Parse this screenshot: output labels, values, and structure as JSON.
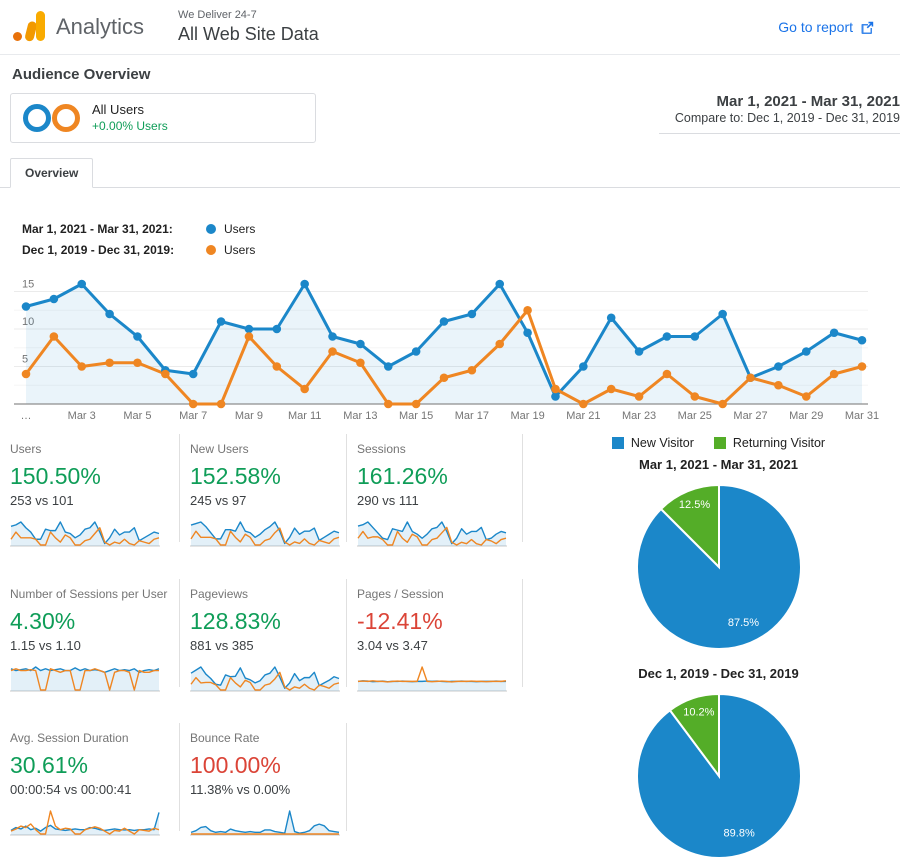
{
  "header": {
    "brand": "Analytics",
    "account_line": "We Deliver 24-7",
    "property_line": "All Web Site Data",
    "go_to_report": "Go to report"
  },
  "page_title": "Audience Overview",
  "segment": {
    "name": "All Users",
    "delta": "+0.00% Users"
  },
  "date_range": {
    "primary": "Mar 1, 2021 - Mar 31, 2021",
    "compare": "Compare to: Dec 1, 2019 - Dec 31, 2019"
  },
  "tabs": [
    {
      "label": "Overview"
    }
  ],
  "colors": {
    "blue": "#1b87c9",
    "orange": "#ef8622",
    "green": "#54ad28",
    "metric_up": "#0f9d58",
    "metric_down": "#db4437",
    "link": "#1a73e8",
    "logo_dot": "#e8710a",
    "logo_mid_bar": "#f29900",
    "logo_tall_bar": "#f9ab00"
  },
  "chart_data": [
    {
      "id": "users-over-time",
      "type": "line",
      "ylim": [
        0,
        17.5
      ],
      "yticks": [
        5,
        10,
        15
      ],
      "grid": true,
      "x_axis_labels": [
        "…",
        "Mar 3",
        "Mar 5",
        "Mar 7",
        "Mar 9",
        "Mar 11",
        "Mar 13",
        "Mar 15",
        "Mar 17",
        "Mar 19",
        "Mar 21",
        "Mar 23",
        "Mar 25",
        "Mar 27",
        "Mar 29",
        "Mar 31"
      ],
      "x_axis_label_days": [
        1,
        3,
        5,
        7,
        9,
        11,
        13,
        15,
        17,
        19,
        21,
        23,
        25,
        27,
        29,
        31
      ],
      "series": [
        {
          "name": "Users",
          "period_label": "Mar 1, 2021 - Mar 31, 2021:",
          "color": "blue",
          "area": true,
          "values": [
            13,
            14,
            16,
            12,
            9,
            4.5,
            4,
            11,
            10,
            10,
            16,
            9,
            8,
            5,
            7,
            11,
            12,
            16,
            9.5,
            1,
            5,
            11.5,
            7,
            9,
            9,
            12,
            3.5,
            5,
            7,
            9.5,
            8.5
          ]
        },
        {
          "name": "Users",
          "period_label": "Dec 1, 2019 - Dec 31, 2019:",
          "color": "orange",
          "area": false,
          "values": [
            4,
            9,
            5,
            5.5,
            5.5,
            4,
            0,
            0,
            9,
            5,
            2,
            7,
            5.5,
            0,
            0,
            3.5,
            4.5,
            8,
            12.5,
            2,
            0,
            2,
            1,
            4,
            1,
            0,
            3.5,
            2.5,
            1,
            4,
            5
          ]
        }
      ]
    },
    {
      "id": "visitors-pie-current",
      "type": "pie",
      "title": "Mar 1, 2021 - Mar 31, 2021",
      "legend_position": "top",
      "slices": [
        {
          "label": "New Visitor",
          "color": "blue",
          "value": 87.5,
          "display": "87.5%"
        },
        {
          "label": "Returning Visitor",
          "color": "green",
          "value": 12.5,
          "display": "12.5%"
        }
      ]
    },
    {
      "id": "visitors-pie-previous",
      "type": "pie",
      "title": "Dec 1, 2019 - Dec 31, 2019",
      "slices": [
        {
          "label": "New Visitor",
          "color": "blue",
          "value": 89.8,
          "display": "89.8%"
        },
        {
          "label": "Returning Visitor",
          "color": "green",
          "value": 10.2,
          "display": "10.2%"
        }
      ]
    }
  ],
  "visitor_legend": [
    {
      "label": "New Visitor",
      "color": "blue"
    },
    {
      "label": "Returning Visitor",
      "color": "green"
    }
  ],
  "scorecards": [
    {
      "label": "Users",
      "pct": "150.50%",
      "direction": "up",
      "values": "253 vs 101",
      "spark": {
        "type": "line",
        "blue": [
          13,
          14,
          16,
          12,
          9,
          4,
          4,
          11,
          10,
          10,
          16,
          9,
          8,
          5,
          7,
          11,
          12,
          16,
          9,
          1,
          5,
          11,
          7,
          9,
          9,
          12,
          3,
          5,
          7,
          9,
          8
        ],
        "orange": [
          4,
          9,
          5,
          5,
          5,
          4,
          0,
          0,
          9,
          5,
          2,
          7,
          5,
          0,
          0,
          3,
          4,
          8,
          12,
          2,
          0,
          2,
          1,
          4,
          1,
          0,
          3,
          2,
          1,
          4,
          5
        ]
      }
    },
    {
      "label": "New Users",
      "pct": "152.58%",
      "direction": "up",
      "values": "245 vs 97",
      "spark": {
        "type": "line",
        "blue": [
          13,
          14,
          15,
          12,
          8,
          4,
          4,
          10,
          10,
          9,
          15,
          9,
          8,
          5,
          7,
          10,
          12,
          15,
          9,
          1,
          5,
          11,
          7,
          9,
          9,
          11,
          3,
          5,
          7,
          9,
          8
        ],
        "orange": [
          4,
          9,
          5,
          5,
          5,
          4,
          0,
          0,
          9,
          5,
          2,
          7,
          5,
          0,
          0,
          3,
          4,
          8,
          11,
          2,
          0,
          2,
          1,
          4,
          1,
          0,
          3,
          2,
          1,
          4,
          5
        ]
      }
    },
    {
      "label": "Sessions",
      "pct": "161.26%",
      "direction": "up",
      "values": "290 vs 111",
      "spark": {
        "type": "line",
        "blue": [
          14,
          15,
          17,
          13,
          9,
          5,
          4,
          12,
          11,
          10,
          17,
          10,
          8,
          5,
          8,
          12,
          13,
          17,
          10,
          1,
          5,
          12,
          8,
          10,
          10,
          13,
          4,
          5,
          8,
          10,
          9
        ],
        "orange": [
          5,
          10,
          5,
          6,
          6,
          4,
          0,
          0,
          10,
          5,
          2,
          8,
          6,
          0,
          0,
          4,
          5,
          9,
          13,
          2,
          0,
          2,
          1,
          4,
          1,
          0,
          4,
          3,
          1,
          4,
          5
        ]
      }
    },
    {
      "label": "Number of Sessions per User",
      "pct": "4.30%",
      "direction": "up",
      "values": "1.15 vs 1.10",
      "spark": {
        "type": "line",
        "blue": [
          1.2,
          1.1,
          1.15,
          1.2,
          1.1,
          1.3,
          1.1,
          1.2,
          1.1,
          1.15,
          1.2,
          1.1,
          1.1,
          1.25,
          1.1,
          1.2,
          1.1,
          1.15,
          1.1,
          1,
          1.1,
          1.2,
          1.1,
          1.15,
          1.1,
          1.2,
          1,
          1.1,
          1.15,
          1.1,
          1.2
        ],
        "orange": [
          1.1,
          1.2,
          1.1,
          1.1,
          1.15,
          1.1,
          0,
          0,
          1.2,
          1.1,
          1,
          1.1,
          1.1,
          0,
          0,
          1.1,
          1.1,
          1.2,
          1.1,
          1,
          0,
          1,
          1.1,
          1.1,
          1,
          0,
          1.1,
          1,
          1,
          1.1,
          1.1
        ]
      }
    },
    {
      "label": "Pageviews",
      "pct": "128.83%",
      "direction": "up",
      "values": "881 vs 385",
      "spark": {
        "type": "line",
        "blue": [
          38,
          45,
          52,
          36,
          26,
          13,
          11,
          34,
          30,
          31,
          50,
          27,
          23,
          16,
          21,
          34,
          38,
          52,
          29,
          4,
          16,
          37,
          21,
          28,
          28,
          40,
          10,
          16,
          22,
          30,
          26
        ],
        "orange": [
          13,
          28,
          16,
          17,
          17,
          12,
          0,
          0,
          28,
          16,
          7,
          22,
          17,
          0,
          0,
          11,
          14,
          25,
          40,
          7,
          0,
          7,
          4,
          13,
          4,
          0,
          11,
          8,
          4,
          13,
          16
        ]
      }
    },
    {
      "label": "Pages / Session",
      "pct": "-12.41%",
      "direction": "down",
      "values": "3.04 vs 3.47",
      "spark": {
        "type": "line",
        "blue": [
          3,
          3.2,
          3.1,
          2.9,
          3,
          3.1,
          2.9,
          3,
          3,
          3.1,
          3,
          2.9,
          3,
          3,
          3.1,
          3,
          3.1,
          3,
          2.9,
          3,
          3,
          3.1,
          3,
          3,
          2.9,
          3,
          3,
          3,
          3.1,
          3,
          3
        ],
        "orange": [
          3,
          3.1,
          3,
          3.2,
          3,
          3,
          2.8,
          3,
          3.1,
          3,
          3,
          3,
          3,
          8,
          3,
          2.9,
          3,
          3.1,
          3,
          2.8,
          3,
          3,
          3,
          3.1,
          3,
          3,
          2.9,
          3,
          3,
          3,
          3.2
        ]
      }
    },
    {
      "label": "Avg. Session Duration",
      "pct": "30.61%",
      "direction": "up",
      "values": "00:00:54 vs 00:00:41",
      "spark": {
        "type": "line",
        "blue": [
          25,
          45,
          35,
          55,
          30,
          40,
          20,
          45,
          60,
          35,
          30,
          25,
          30,
          35,
          30,
          30,
          45,
          40,
          30,
          25,
          30,
          35,
          30,
          28,
          30,
          25,
          30,
          30,
          35,
          30,
          150
        ],
        "orange": [
          20,
          35,
          55,
          45,
          70,
          30,
          0,
          0,
          160,
          55,
          30,
          40,
          35,
          0,
          0,
          30,
          40,
          50,
          40,
          20,
          0,
          25,
          20,
          40,
          20,
          0,
          30,
          25,
          20,
          40,
          30
        ]
      }
    },
    {
      "label": "Bounce Rate",
      "pct": "100.00%",
      "direction": "down",
      "values": "11.38% vs 0.00%",
      "spark": {
        "type": "line",
        "blue": [
          2,
          4,
          8,
          9,
          4,
          2,
          3,
          2,
          6,
          4,
          3,
          2,
          3,
          2,
          2,
          5,
          5,
          3,
          2,
          1,
          28,
          3,
          1,
          2,
          4,
          10,
          12,
          10,
          4,
          3,
          2
        ],
        "orange": [
          0,
          0,
          0,
          0,
          0,
          0,
          0,
          0,
          0,
          0,
          0,
          0,
          0,
          0,
          0,
          0,
          0,
          0,
          0,
          0,
          0,
          0,
          0,
          0,
          0,
          0,
          0,
          0,
          0,
          0,
          0
        ]
      }
    }
  ]
}
